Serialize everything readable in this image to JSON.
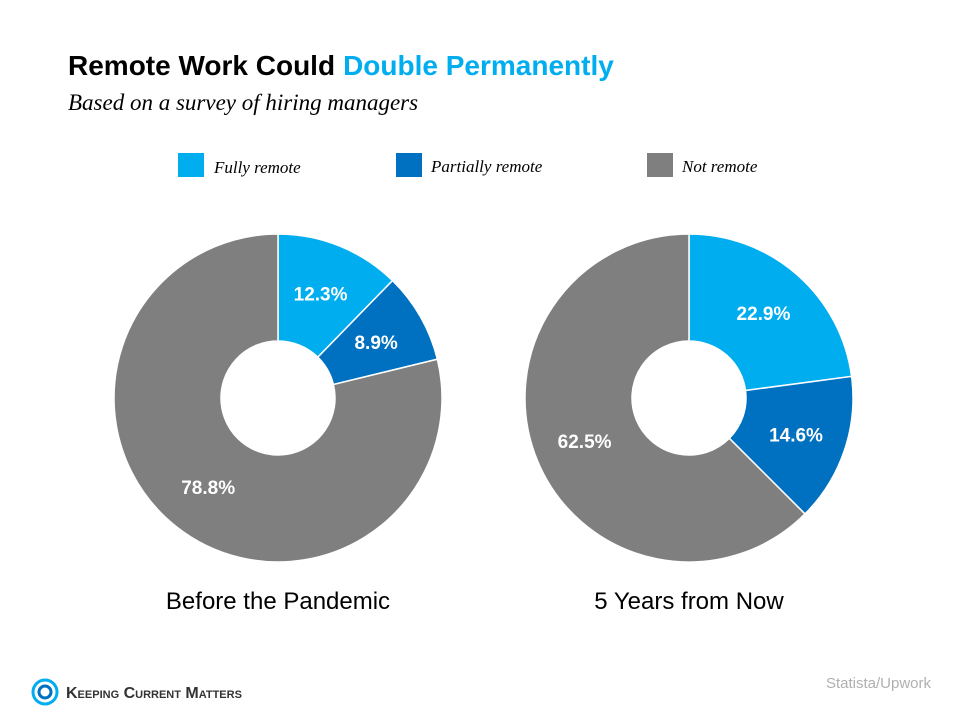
{
  "header": {
    "title": "Remote Work Could",
    "title_highlight": "Double Permanently",
    "subtitle": "Based on a survey of hiring managers"
  },
  "chart_data": [
    {
      "type": "pie",
      "donut": true,
      "title": "Before the Pandemic",
      "categories": [
        "Fully remote",
        "Partially remote",
        "Not remote"
      ],
      "values": [
        12.3,
        8.9,
        78.8
      ],
      "value_labels": [
        "12.3%",
        "8.9%",
        "78.8%"
      ],
      "colors": [
        "#00adef",
        "#0070c0",
        "#7f7f7f"
      ]
    },
    {
      "type": "pie",
      "donut": true,
      "title": "5 Years from Now",
      "categories": [
        "Fully remote",
        "Partially remote",
        "Not remote"
      ],
      "values": [
        22.9,
        14.6,
        62.5
      ],
      "value_labels": [
        "22.9%",
        "14.6%",
        "62.5%"
      ],
      "colors": [
        "#00adef",
        "#0070c0",
        "#7f7f7f"
      ]
    }
  ],
  "source": "Statista/Upwork",
  "logo": "Keeping Current Matters"
}
